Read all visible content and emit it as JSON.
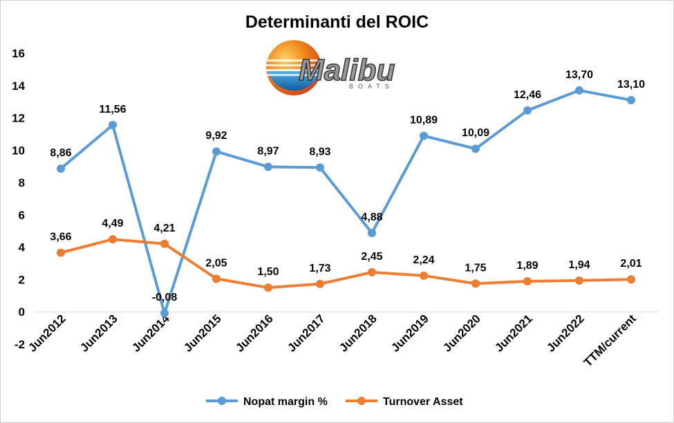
{
  "colors": {
    "series1": "#5b9bd5",
    "series2": "#ed7d31",
    "axis": "#000000"
  },
  "logo": {
    "text": "Malibu",
    "subtext": "BOATS"
  },
  "chart_data": {
    "type": "line",
    "title": "Determinanti del ROIC",
    "categories": [
      "Jun2012",
      "Jun2013",
      "Jun2014",
      "Jun2015",
      "Jun2016",
      "Jun2017",
      "Jun2018",
      "Jun2019",
      "Jun2020",
      "Jun2021",
      "Jun2022",
      "TTM/current"
    ],
    "series": [
      {
        "name": "Nopat margin %",
        "values": [
          8.86,
          11.56,
          -0.08,
          9.92,
          8.97,
          8.93,
          4.88,
          10.89,
          10.09,
          12.46,
          13.7,
          13.1
        ],
        "labels": [
          "8,86",
          "11,56",
          "-0,08",
          "9,92",
          "8,97",
          "8,93",
          "4,88",
          "10,89",
          "10,09",
          "12,46",
          "13,70",
          "13,10"
        ]
      },
      {
        "name": "Turnover Asset",
        "values": [
          3.66,
          4.49,
          4.21,
          2.05,
          1.5,
          1.73,
          2.45,
          2.24,
          1.75,
          1.89,
          1.94,
          2.01
        ],
        "labels": [
          "3,66",
          "4,49",
          "4,21",
          "2,05",
          "1,50",
          "1,73",
          "2,45",
          "2,24",
          "1,75",
          "1,89",
          "1,94",
          "2,01"
        ]
      }
    ],
    "ylim": [
      -2,
      16
    ],
    "yticks": [
      -2,
      0,
      2,
      4,
      6,
      8,
      10,
      12,
      14,
      16
    ],
    "grid": false,
    "legend_position": "bottom"
  }
}
